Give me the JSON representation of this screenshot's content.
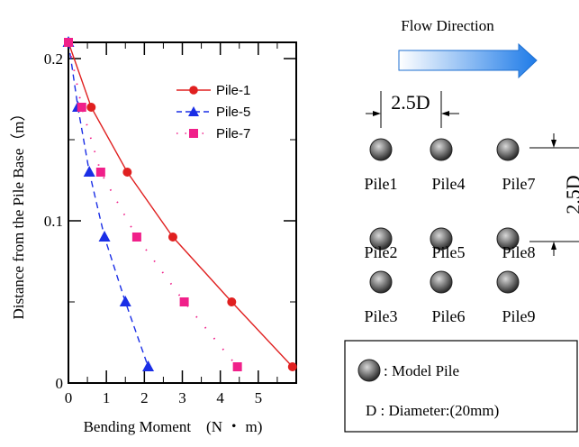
{
  "chart_data": {
    "type": "line",
    "xlabel": "Bending Moment　(N ・ m)",
    "ylabel": "Distance from the Pile Base（m）",
    "xlim": [
      0,
      6
    ],
    "ylim": [
      0,
      0.21
    ],
    "x_ticks": [
      "0",
      "1",
      "2",
      "3",
      "4",
      "5"
    ],
    "y_ticks": [
      "0",
      "0.1",
      "0.2"
    ],
    "legend_position": "top-right",
    "series": [
      {
        "name": "Pile-1",
        "color": "#e02020",
        "marker": "circle",
        "line": "solid",
        "points": [
          [
            0.0,
            0.21
          ],
          [
            0.6,
            0.17
          ],
          [
            1.55,
            0.13
          ],
          [
            2.75,
            0.09
          ],
          [
            4.3,
            0.05
          ],
          [
            5.9,
            0.01
          ]
        ]
      },
      {
        "name": "Pile-5",
        "color": "#1a2ee6",
        "marker": "triangle",
        "line": "dashed",
        "points": [
          [
            0.0,
            0.21
          ],
          [
            0.25,
            0.17
          ],
          [
            0.55,
            0.13
          ],
          [
            0.95,
            0.09
          ],
          [
            1.5,
            0.05
          ],
          [
            2.1,
            0.01
          ]
        ]
      },
      {
        "name": "Pile-7",
        "color": "#f0208a",
        "marker": "square",
        "line": "dotted",
        "points": [
          [
            0.0,
            0.21
          ],
          [
            0.35,
            0.17
          ],
          [
            0.85,
            0.13
          ],
          [
            1.8,
            0.09
          ],
          [
            3.05,
            0.05
          ],
          [
            4.45,
            0.01
          ]
        ]
      }
    ]
  },
  "diagram": {
    "flow_label": "Flow Direction",
    "spacing_label": "2.5D",
    "spacing_label_vertical": "2.5D",
    "piles": [
      "Pile1",
      "Pile4",
      "Pile7",
      "Pile2",
      "Pile5",
      "Pile8",
      "Pile3",
      "Pile6",
      "Pile9"
    ],
    "legend_model_pile": ": Model Pile",
    "legend_diameter": "D : Diameter:(20mm)"
  }
}
